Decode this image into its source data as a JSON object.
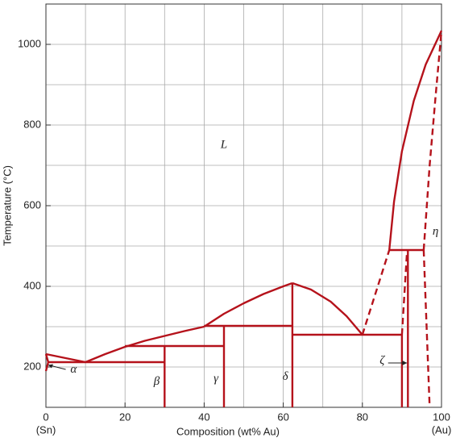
{
  "chart_data": {
    "type": "phase-diagram",
    "x_label": "Composition (wt% Au)",
    "y_label": "Temperature (°C)",
    "x_end_labels": [
      "(Sn)",
      "(Au)"
    ],
    "xlim": [
      0,
      100
    ],
    "ylim": [
      100,
      1100
    ],
    "xticks": [
      0,
      20,
      40,
      60,
      80,
      100
    ],
    "yticks": [
      200,
      400,
      600,
      800,
      1000
    ],
    "xminor": [
      10,
      30,
      50,
      70,
      90
    ],
    "yminor": [
      300,
      500,
      700,
      900
    ],
    "grid": true,
    "color": "#b5121b",
    "boundaries": [
      {
        "style": "solid",
        "x": [
          0,
          5,
          10
        ],
        "y": [
          232,
          222,
          212
        ]
      },
      {
        "style": "solid",
        "x": [
          0,
          0.6,
          0
        ],
        "y": [
          232,
          212,
          190
        ]
      },
      {
        "style": "solid",
        "x": [
          0.6,
          30
        ],
        "y": [
          212,
          212
        ]
      },
      {
        "style": "solid",
        "x": [
          10,
          15,
          20,
          25,
          30,
          35,
          40
        ],
        "y": [
          212,
          232,
          250,
          265,
          277,
          289,
          300
        ]
      },
      {
        "style": "solid",
        "x": [
          20,
          45
        ],
        "y": [
          252,
          252
        ]
      },
      {
        "style": "solid",
        "x": [
          30,
          30
        ],
        "y": [
          252,
          100
        ]
      },
      {
        "style": "solid",
        "x": [
          40,
          62.3
        ],
        "y": [
          302,
          302
        ]
      },
      {
        "style": "solid",
        "x": [
          45,
          45
        ],
        "y": [
          302,
          100
        ]
      },
      {
        "style": "solid",
        "x": [
          40,
          45,
          50,
          55,
          60,
          62.3
        ],
        "y": [
          300,
          332,
          358,
          381,
          400,
          408
        ]
      },
      {
        "style": "solid",
        "x": [
          62.3,
          62.3
        ],
        "y": [
          408,
          100
        ]
      },
      {
        "style": "solid",
        "x": [
          62.3,
          67,
          72,
          76,
          80
        ],
        "y": [
          408,
          392,
          362,
          326,
          280
        ]
      },
      {
        "style": "solid",
        "x": [
          62.3,
          90
        ],
        "y": [
          280,
          280
        ]
      },
      {
        "style": "dashed",
        "x": [
          80,
          86.8
        ],
        "y": [
          280,
          490
        ]
      },
      {
        "style": "solid",
        "x": [
          86.8,
          95.5
        ],
        "y": [
          490,
          490
        ]
      },
      {
        "style": "solid",
        "x": [
          90,
          90
        ],
        "y": [
          280,
          100
        ]
      },
      {
        "style": "dashed",
        "x": [
          90,
          91.3
        ],
        "y": [
          280,
          490
        ]
      },
      {
        "style": "solid",
        "x": [
          91.5,
          91.5
        ],
        "y": [
          490,
          100
        ]
      },
      {
        "style": "solid",
        "x": [
          86.8,
          88,
          90,
          93,
          96,
          100
        ],
        "y": [
          490,
          610,
          735,
          860,
          950,
          1034
        ]
      },
      {
        "style": "dashed",
        "x": [
          95.5,
          97,
          98.5,
          100
        ],
        "y": [
          490,
          700,
          870,
          1034
        ]
      },
      {
        "style": "dashed",
        "x": [
          95.5,
          97
        ],
        "y": [
          490,
          100
        ]
      }
    ],
    "annotations": [
      "L",
      "α",
      "β",
      "γ",
      "δ",
      "ζ",
      "η"
    ]
  }
}
